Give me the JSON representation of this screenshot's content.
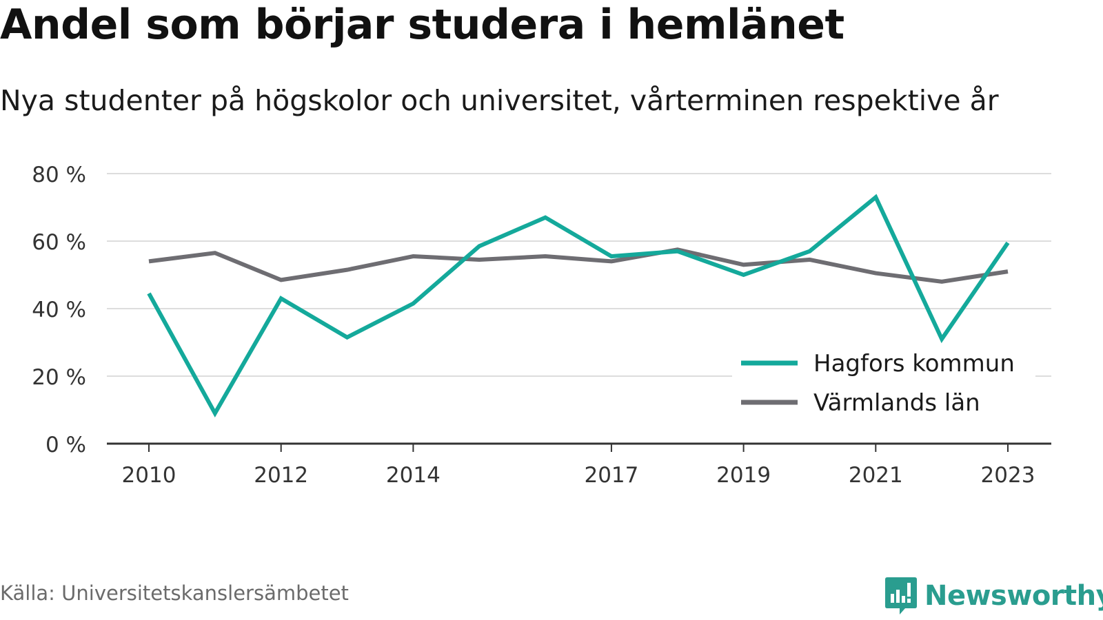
{
  "title": "Andel som börjar studera i hemlänet",
  "subtitle": "Nya studenter på högskolor och universitet, vårterminen respektive år",
  "source": "Källa: Universitetskanslersämbetet",
  "brand": {
    "name": "Newsworthy",
    "icon": "newsworthy-logo-icon",
    "color": "#2a9d8f"
  },
  "chart_data": {
    "type": "line",
    "x": [
      2010,
      2011,
      2012,
      2013,
      2014,
      2015,
      2016,
      2017,
      2018,
      2019,
      2020,
      2021,
      2022,
      2023
    ],
    "x_tick_labels": [
      "2010",
      "2012",
      "2014",
      "2017",
      "2019",
      "2021",
      "2023"
    ],
    "y_tick_labels": [
      "0 %",
      "20 %",
      "40 %",
      "60 %",
      "80 %"
    ],
    "y_ticks": [
      0,
      20,
      40,
      60,
      80
    ],
    "ylim": [
      0,
      80
    ],
    "grid": true,
    "legend_position": "bottom-right",
    "series": [
      {
        "name": "Hagfors kommun",
        "color": "#14a99b",
        "values": [
          44.5,
          9,
          43,
          31.5,
          41.5,
          58.5,
          67,
          55.5,
          57,
          50,
          57,
          73,
          31,
          59.5
        ]
      },
      {
        "name": "Värmlands län",
        "color": "#6e6d72",
        "values": [
          54,
          56.5,
          48.5,
          51.5,
          55.5,
          54.5,
          55.5,
          54,
          57.5,
          53,
          54.5,
          50.5,
          48,
          51
        ]
      }
    ]
  }
}
